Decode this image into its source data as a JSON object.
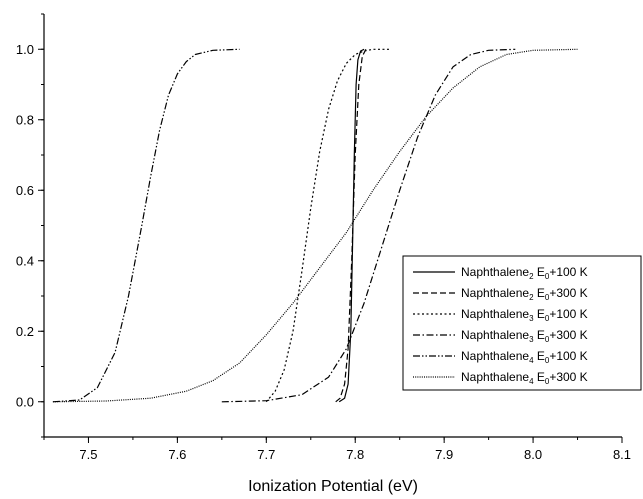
{
  "chart_data": {
    "type": "line",
    "title": "",
    "xlabel": "Ionization Potential (eV)",
    "ylabel": "",
    "xlim": [
      7.45,
      8.1
    ],
    "ylim": [
      -0.1,
      1.1
    ],
    "x_ticks": [
      "7.5",
      "7.6",
      "7.7",
      "7.8",
      "7.9",
      "8.0",
      "8.1"
    ],
    "y_ticks": [
      "0.0",
      "0.2",
      "0.4",
      "0.6",
      "0.8",
      "1.0"
    ],
    "legend_position": "lower-right",
    "series": [
      {
        "name": "Naphthalene2 E0+100 K",
        "name_parts": {
          "base": "Naphthalene",
          "sub1": "2",
          "mid": " E",
          "sub2": "0",
          "tail": "+100 K"
        },
        "dash": "solid",
        "x": [
          7.782,
          7.788,
          7.792,
          7.795,
          7.797,
          7.799,
          7.801,
          7.803,
          7.806,
          7.81
        ],
        "y": [
          0.0,
          0.01,
          0.05,
          0.2,
          0.45,
          0.7,
          0.9,
          0.97,
          0.995,
          1.0
        ]
      },
      {
        "name": "Naphthalene2 E0+300 K",
        "name_parts": {
          "base": "Naphthalene",
          "sub1": "2",
          "mid": " E",
          "sub2": "0",
          "tail": "+300 K"
        },
        "dash": "dash",
        "x": [
          7.778,
          7.783,
          7.788,
          7.792,
          7.796,
          7.8,
          7.804,
          7.808,
          7.812
        ],
        "y": [
          0.0,
          0.01,
          0.05,
          0.15,
          0.4,
          0.7,
          0.9,
          0.98,
          1.0
        ]
      },
      {
        "name": "Naphthalene3 E0+100 K",
        "name_parts": {
          "base": "Naphthalene",
          "sub1": "3",
          "mid": " E",
          "sub2": "0",
          "tail": "+100 K"
        },
        "dash": "dot",
        "x": [
          7.7,
          7.71,
          7.72,
          7.73,
          7.74,
          7.75,
          7.76,
          7.77,
          7.78,
          7.79,
          7.8,
          7.81,
          7.82,
          7.84
        ],
        "y": [
          0.0,
          0.03,
          0.09,
          0.2,
          0.37,
          0.55,
          0.71,
          0.83,
          0.91,
          0.96,
          0.985,
          0.995,
          1.0,
          1.0
        ]
      },
      {
        "name": "Naphthalene3 E0+300 K",
        "name_parts": {
          "base": "Naphthalene",
          "sub1": "3",
          "mid": " E",
          "sub2": "0",
          "tail": "+300 K"
        },
        "dash": "dashdot",
        "x": [
          7.65,
          7.7,
          7.74,
          7.77,
          7.79,
          7.81,
          7.83,
          7.85,
          7.87,
          7.89,
          7.91,
          7.93,
          7.95,
          7.98
        ],
        "y": [
          0.0,
          0.003,
          0.02,
          0.07,
          0.15,
          0.28,
          0.44,
          0.6,
          0.75,
          0.87,
          0.95,
          0.985,
          0.997,
          1.0
        ]
      },
      {
        "name": "Naphthalene4 E0+100 K",
        "name_parts": {
          "base": "Naphthalene",
          "sub1": "4",
          "mid": " E",
          "sub2": "0",
          "tail": "+100 K"
        },
        "dash": "dashdotdot",
        "x": [
          7.46,
          7.49,
          7.51,
          7.53,
          7.545,
          7.56,
          7.57,
          7.58,
          7.59,
          7.6,
          7.61,
          7.62,
          7.64,
          7.67
        ],
        "y": [
          0.0,
          0.005,
          0.04,
          0.14,
          0.3,
          0.5,
          0.64,
          0.77,
          0.87,
          0.93,
          0.965,
          0.985,
          0.997,
          1.0
        ]
      },
      {
        "name": "Naphthalene4 E0+300 K",
        "name_parts": {
          "base": "Naphthalene",
          "sub1": "4",
          "mid": " E",
          "sub2": "0",
          "tail": "+300 K"
        },
        "dash": "fine-dot",
        "x": [
          7.46,
          7.52,
          7.57,
          7.61,
          7.64,
          7.67,
          7.7,
          7.73,
          7.76,
          7.79,
          7.82,
          7.85,
          7.88,
          7.91,
          7.94,
          7.97,
          8.0,
          8.05
        ],
        "y": [
          0.0,
          0.002,
          0.01,
          0.03,
          0.06,
          0.11,
          0.19,
          0.28,
          0.38,
          0.48,
          0.6,
          0.71,
          0.81,
          0.89,
          0.95,
          0.985,
          0.997,
          1.0
        ]
      }
    ]
  }
}
